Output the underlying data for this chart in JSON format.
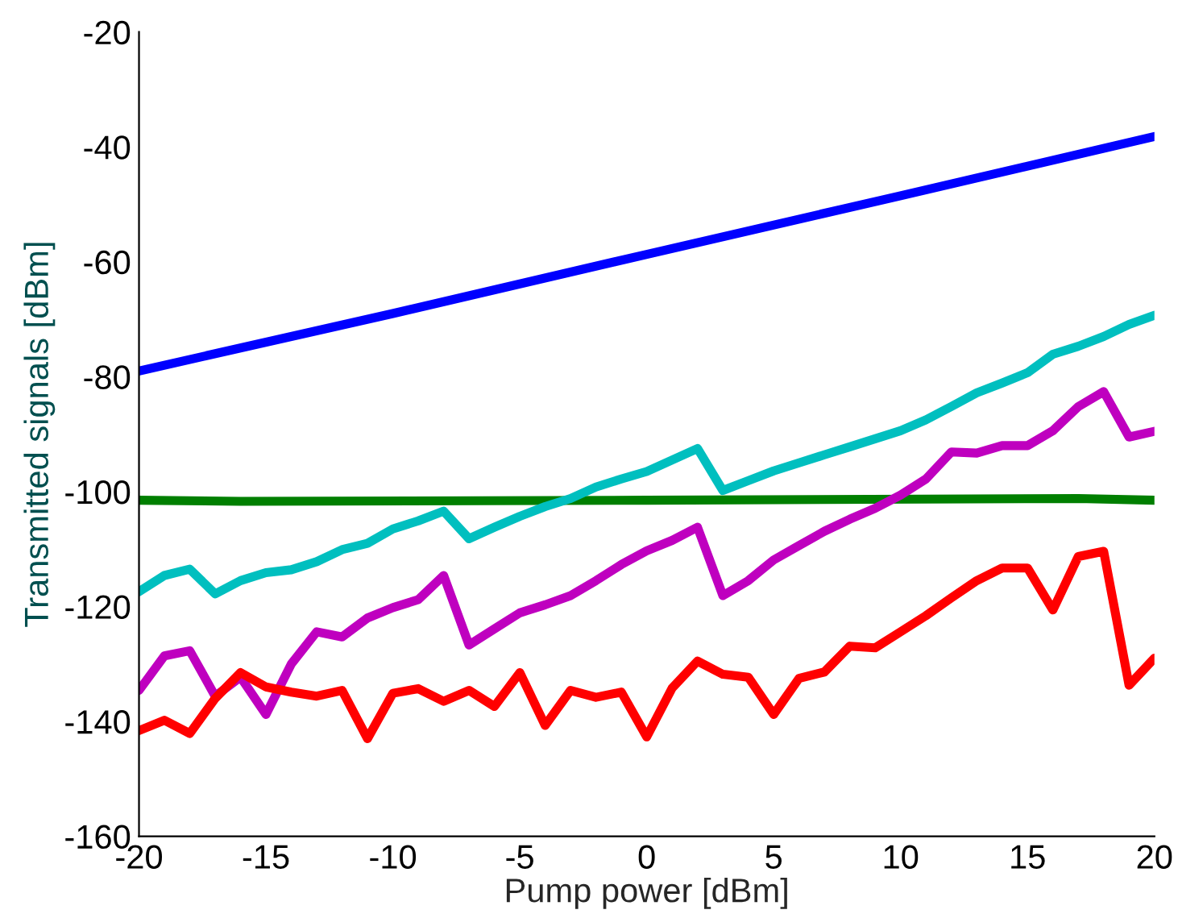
{
  "chart_data": {
    "type": "line",
    "xlabel": "Pump power [dBm]",
    "ylabel": "Transmitted signals [dBm]",
    "x": [
      -20,
      -19,
      -18,
      -17,
      -16,
      -15,
      -14,
      -13,
      -12,
      -11,
      -10,
      -9,
      -8,
      -7,
      -6,
      -5,
      -4,
      -3,
      -2,
      -1,
      0,
      1,
      2,
      3,
      4,
      5,
      6,
      7,
      8,
      9,
      10,
      11,
      12,
      13,
      14,
      15,
      16,
      17,
      18,
      19,
      20
    ],
    "series": [
      {
        "color": "#0000ff",
        "x": [
          -20,
          -10,
          0,
          10,
          20
        ],
        "values": [
          -79,
          -69,
          -58.7,
          -48.5,
          -38.2
        ]
      },
      {
        "color": "#007f00",
        "x": [
          -20,
          -16,
          0,
          17,
          20
        ],
        "values": [
          -101.5,
          -101.7,
          -101.5,
          -101.2,
          -101.5
        ]
      },
      {
        "color": "#00bfbf",
        "values": [
          -117.4,
          -114.6,
          -113.5,
          -117.8,
          -115.5,
          -114.1,
          -113.6,
          -112.2,
          -110.1,
          -109,
          -106.5,
          -105.1,
          -103.4,
          -108.2,
          -106.2,
          -104.3,
          -102.6,
          -101.2,
          -99.2,
          -97.8,
          -96.5,
          -94.5,
          -92.5,
          -99.8,
          -98.1,
          -96.4,
          -95,
          -93.6,
          -92.2,
          -90.8,
          -89.4,
          -87.5,
          -85.2,
          -82.8,
          -81.1,
          -79.3,
          -76.1,
          -74.7,
          -73,
          -70.9,
          -69.3
        ]
      },
      {
        "color": "#bf00bf",
        "values": [
          -134.6,
          -128.6,
          -127.7,
          -135.6,
          -132.3,
          -138.8,
          -130,
          -124.4,
          -125.3,
          -122,
          -120.2,
          -118.8,
          -114.6,
          -126.7,
          -123.9,
          -121.1,
          -119.7,
          -118.1,
          -115.5,
          -112.7,
          -110.3,
          -108.5,
          -106.2,
          -118.1,
          -115.5,
          -111.9,
          -109.4,
          -106.9,
          -104.8,
          -102.9,
          -100.6,
          -97.8,
          -93.1,
          -93.3,
          -92,
          -92,
          -89.4,
          -85.2,
          -82.6,
          -90.5,
          -89.5
        ]
      },
      {
        "color": "#ff0000",
        "values": [
          -141.6,
          -139.8,
          -142.1,
          -136,
          -131.5,
          -134,
          -134.9,
          -135.6,
          -134.6,
          -143,
          -135.1,
          -134.3,
          -136.5,
          -134.6,
          -137.4,
          -131.5,
          -140.7,
          -134.6,
          -135.8,
          -134.9,
          -142.7,
          -134.2,
          -129.5,
          -131.8,
          -132.3,
          -138.8,
          -132.5,
          -131.4,
          -126.9,
          -127.2,
          -124.4,
          -121.6,
          -118.5,
          -115.5,
          -113.3,
          -113.3,
          -120.6,
          -111.3,
          -110.4,
          -133.7,
          -129
        ]
      }
    ],
    "xlim": [
      -20,
      20
    ],
    "xticks": [
      -20,
      -15,
      -10,
      -5,
      0,
      5,
      10,
      15,
      20
    ],
    "ylim": [
      -160,
      -20
    ],
    "yticks": [
      -160,
      -140,
      -120,
      -100,
      -80,
      -60,
      -40,
      -20
    ],
    "grid": false,
    "marker": "none",
    "line_style": "solid"
  }
}
